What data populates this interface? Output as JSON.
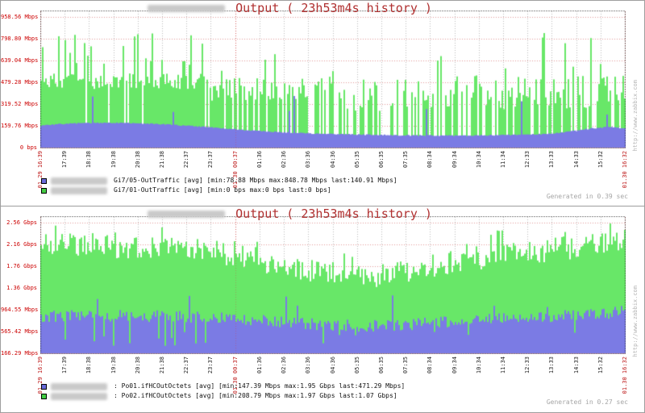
{
  "page": {
    "bg": "#ffffff",
    "border": "#9e9e9e"
  },
  "watermark": "http://www.zabbix.com",
  "colors": {
    "green": "#68e768",
    "blue": "#7b7be4",
    "label_red": "#cc0000",
    "title_red": "#b03030",
    "grid_gray": "#bdbdbd",
    "grid_red": "rgba(205,70,70,0.55)",
    "grid_red_strong": "rgba(205,70,70,0.75)",
    "border": "#1c1c1c",
    "muted": "#a6a6a6"
  },
  "x_labels": [
    {
      "t": "01.29 16:39",
      "red": true
    },
    {
      "t": "17:39"
    },
    {
      "t": "18:38"
    },
    {
      "t": "19:38"
    },
    {
      "t": "20:38"
    },
    {
      "t": "21:38"
    },
    {
      "t": "22:37"
    },
    {
      "t": "23:37"
    },
    {
      "t": "01.30 00:37",
      "red": true
    },
    {
      "t": "01:36"
    },
    {
      "t": "02:36"
    },
    {
      "t": "03:36"
    },
    {
      "t": "04:36"
    },
    {
      "t": "05:35"
    },
    {
      "t": "06:35"
    },
    {
      "t": "07:35"
    },
    {
      "t": "08:34"
    },
    {
      "t": "09:34"
    },
    {
      "t": "10:34"
    },
    {
      "t": "11:34"
    },
    {
      "t": "12:33"
    },
    {
      "t": "13:33"
    },
    {
      "t": "14:33"
    },
    {
      "t": "15:32"
    },
    {
      "t": "01.30 16:32",
      "red": true
    }
  ],
  "panels": [
    {
      "title": "Output ( 23h53m4s history )",
      "generated": "Generated in 0.39 sec",
      "legend": [
        {
          "swatch": "#6a6ad8",
          "text": "Gi7/05-OutTraffic [avg] [min:78.88 Mbps max:848.78 Mbps last:140.91 Mbps]"
        },
        {
          "swatch": "#44cc44",
          "text": "Gi7/01-OutTraffic [avg] [min:0 bps max:0 bps last:0 bps]"
        }
      ]
    },
    {
      "title": "Output ( 23h53m4s history )",
      "generated": "Generated in 0.27 sec",
      "legend": [
        {
          "swatch": "#6a6ad8",
          "text": ": Po01.ifHCOutOctets [avg] [min:147.39 Mbps max:1.95 Gbps last:471.29 Mbps]"
        },
        {
          "swatch": "#44cc44",
          "text": ": Po02.ifHCOutOctets [avg] [min:208.79 Mbps max:1.97 Gbps last:1.07 Gbps]"
        }
      ]
    }
  ],
  "chart_data": [
    {
      "type": "area",
      "title": "Output ( 23h53m4s history )",
      "x_start": "01.29 16:39",
      "x_end": "01.30 16:32",
      "y_axis": {
        "tick_labels": [
          "958.56 Mbps",
          "798.80 Mbps",
          "639.04 Mbps",
          "479.28 Mbps",
          "319.52 Mbps",
          "159.76 Mbps",
          "0 bps"
        ],
        "tick_values_mbps": [
          958.56,
          798.8,
          639.04,
          479.28,
          319.52,
          159.76,
          0
        ],
        "vmin": 0,
        "vmax": 1006,
        "unit": "Mbps"
      },
      "series": [
        {
          "name": "Gi7/05-OutTraffic",
          "legend_color": "blue",
          "stats": {
            "min": "78.88 Mbps",
            "max": "848.78 Mbps",
            "last": "140.91 Mbps"
          }
        },
        {
          "name": "Gi7/01-OutTraffic",
          "legend_color": "green",
          "stats": {
            "min": "0 bps",
            "max": "0 bps",
            "last": "0 bps"
          }
        }
      ],
      "render": {
        "green_bars": {
          "seed": 11,
          "pitch": 2,
          "segments": [
            {
              "from": 0,
              "to": 0.28,
              "density": 0.94,
              "lo": 430,
              "hi": 545,
              "spike_p": 0.16,
              "spike_lo": 600,
              "spike_hi": 858
            },
            {
              "from": 0.28,
              "to": 0.52,
              "density": 0.58,
              "lo": 340,
              "hi": 520,
              "spike_p": 0.1,
              "spike_lo": 550,
              "spike_hi": 790
            },
            {
              "from": 0.52,
              "to": 0.78,
              "density": 0.52,
              "lo": 270,
              "hi": 500,
              "spike_p": 0.07,
              "spike_lo": 520,
              "spike_hi": 710
            },
            {
              "from": 0.78,
              "to": 1,
              "density": 0.8,
              "lo": 280,
              "hi": 530,
              "spike_p": 0.15,
              "spike_lo": 580,
              "spike_hi": 868
            }
          ]
        },
        "blue_area": {
          "seed": 7,
          "noise": 4,
          "spike_p": 0.018,
          "spike_lo": 220,
          "spike_hi": 470,
          "envelope": [
            [
              0,
              162
            ],
            [
              0.03,
              172
            ],
            [
              0.08,
              182
            ],
            [
              0.14,
              181
            ],
            [
              0.2,
              173
            ],
            [
              0.26,
              158
            ],
            [
              0.32,
              138
            ],
            [
              0.38,
              120
            ],
            [
              0.44,
              107
            ],
            [
              0.5,
              99
            ],
            [
              0.56,
              94
            ],
            [
              0.62,
              90
            ],
            [
              0.68,
              88
            ],
            [
              0.74,
              89
            ],
            [
              0.8,
              93
            ],
            [
              0.86,
              99
            ],
            [
              0.9,
              115
            ],
            [
              0.94,
              140
            ],
            [
              0.97,
              152
            ],
            [
              1,
              141
            ]
          ]
        }
      }
    },
    {
      "type": "area",
      "title": "Output ( 23h53m4s history )",
      "x_start": "01.29 16:39",
      "x_end": "01.30 16:32",
      "y_axis": {
        "tick_labels": [
          "2.56 Gbps",
          "2.16 Gbps",
          "1.76 Gbps",
          "1.36 Gbps",
          "964.55 Mbps",
          "565.42 Mbps",
          "166.29 Mbps"
        ],
        "tick_values_mbps": [
          2560,
          2160,
          1760,
          1360,
          964.55,
          565.42,
          166.29
        ],
        "vmin": 166.29,
        "vmax": 2679,
        "unit": "Gbps"
      },
      "series": [
        {
          "name": "Po01.ifHCOutOctets",
          "legend_color": "blue",
          "stats": {
            "min": "147.39 Mbps",
            "max": "1.95 Gbps",
            "last": "471.29 Mbps"
          }
        },
        {
          "name": "Po02.ifHCOutOctets",
          "legend_color": "green",
          "stats": {
            "min": "208.79 Mbps",
            "max": "1.97 Gbps",
            "last": "1.07 Gbps"
          }
        }
      ],
      "render": {
        "green_solid": {
          "seed": 21,
          "pitch": 2,
          "noise": 230,
          "spike_p": 0.08,
          "spike_add": 380,
          "cap": 2560,
          "envelope": [
            [
              0,
              2180
            ],
            [
              0.06,
              2160
            ],
            [
              0.12,
              2140
            ],
            [
              0.18,
              2120
            ],
            [
              0.24,
              2100
            ],
            [
              0.3,
              2040
            ],
            [
              0.36,
              1900
            ],
            [
              0.42,
              1760
            ],
            [
              0.48,
              1640
            ],
            [
              0.54,
              1570
            ],
            [
              0.6,
              1620
            ],
            [
              0.66,
              1740
            ],
            [
              0.72,
              1860
            ],
            [
              0.78,
              1960
            ],
            [
              0.84,
              2040
            ],
            [
              0.9,
              2100
            ],
            [
              0.96,
              2170
            ],
            [
              1,
              2200
            ]
          ]
        },
        "blue_area": {
          "seed": 31,
          "noise": 110,
          "dip_p": 0.05,
          "dip_lo": 300,
          "dip_hi": 560,
          "spike_p": 0.03,
          "spike_lo": 950,
          "spike_hi": 1250,
          "envelope": [
            [
              0,
              840
            ],
            [
              0.08,
              860
            ],
            [
              0.16,
              850
            ],
            [
              0.24,
              840
            ],
            [
              0.32,
              820
            ],
            [
              0.4,
              760
            ],
            [
              0.48,
              690
            ],
            [
              0.56,
              660
            ],
            [
              0.64,
              700
            ],
            [
              0.72,
              760
            ],
            [
              0.8,
              800
            ],
            [
              0.88,
              840
            ],
            [
              0.96,
              880
            ],
            [
              1,
              960
            ]
          ]
        }
      }
    }
  ]
}
